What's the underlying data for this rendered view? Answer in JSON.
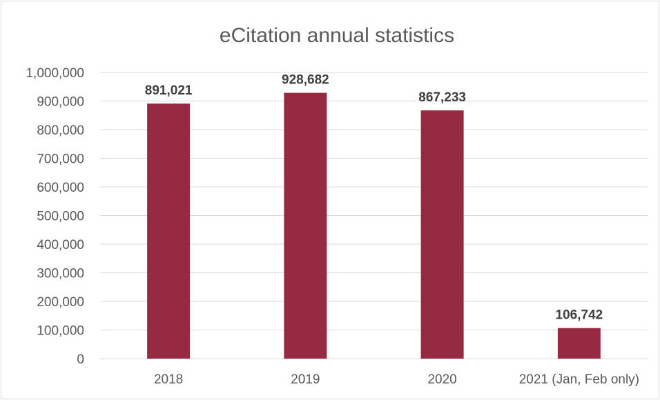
{
  "chart_data": {
    "type": "bar",
    "title": "eCitation annual statistics",
    "categories": [
      "2018",
      "2019",
      "2020",
      "2021 (Jan, Feb only)"
    ],
    "values": [
      891021,
      928682,
      867233,
      106742
    ],
    "data_labels": [
      "891,021",
      "928,682",
      "867,233",
      "106,742"
    ],
    "yticks": [
      "0",
      "100,000",
      "200,000",
      "300,000",
      "400,000",
      "500,000",
      "600,000",
      "700,000",
      "800,000",
      "900,000",
      "1,000,000"
    ],
    "ylim": [
      0,
      1000000
    ],
    "grid": true,
    "legend": "none",
    "bar_color": "#962a43"
  }
}
